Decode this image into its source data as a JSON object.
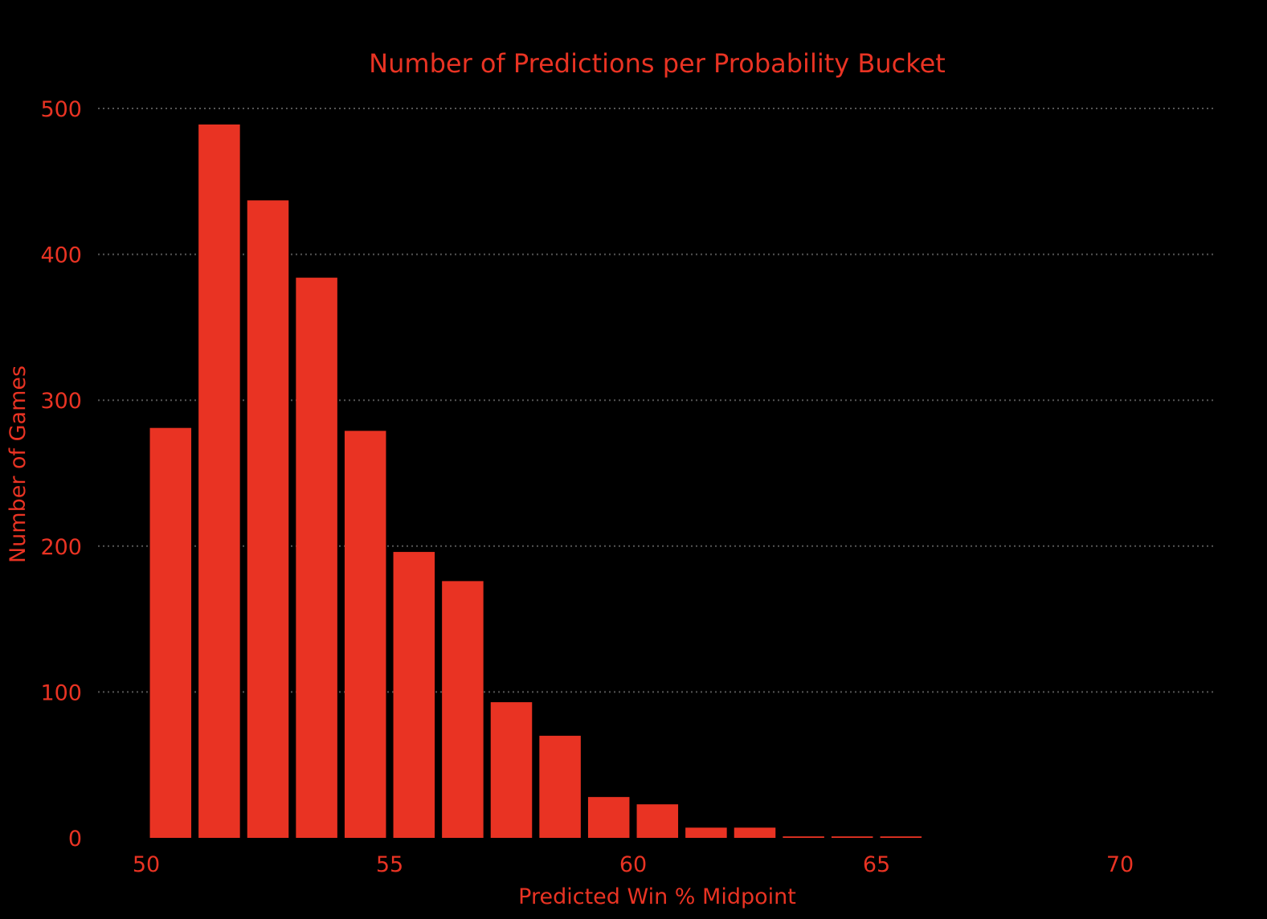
{
  "chart_data": {
    "type": "bar",
    "title": "Number of Predictions per Probability Bucket",
    "xlabel": "Predicted Win % Midpoint",
    "ylabel": "Number of Games",
    "x": [
      50.5,
      51.5,
      52.5,
      53.5,
      54.5,
      55.5,
      56.5,
      57.5,
      58.5,
      59.5,
      60.5,
      61.5,
      62.5,
      63.5,
      64.5,
      65.5
    ],
    "values": [
      281,
      489,
      437,
      384,
      279,
      196,
      176,
      93,
      70,
      28,
      23,
      7,
      7,
      1,
      1,
      1
    ],
    "bar_width": 0.85,
    "xlim": [
      49,
      72
    ],
    "ylim": [
      0,
      500
    ],
    "x_ticks": [
      "50",
      "55",
      "60",
      "65",
      "70"
    ],
    "y_ticks": [
      "0",
      "100",
      "200",
      "300",
      "400",
      "500"
    ],
    "grid": "horizontal dotted",
    "colors": {
      "background": "#000000",
      "bar": "#e93323",
      "text": "#e93323",
      "grid": "#555555"
    }
  }
}
